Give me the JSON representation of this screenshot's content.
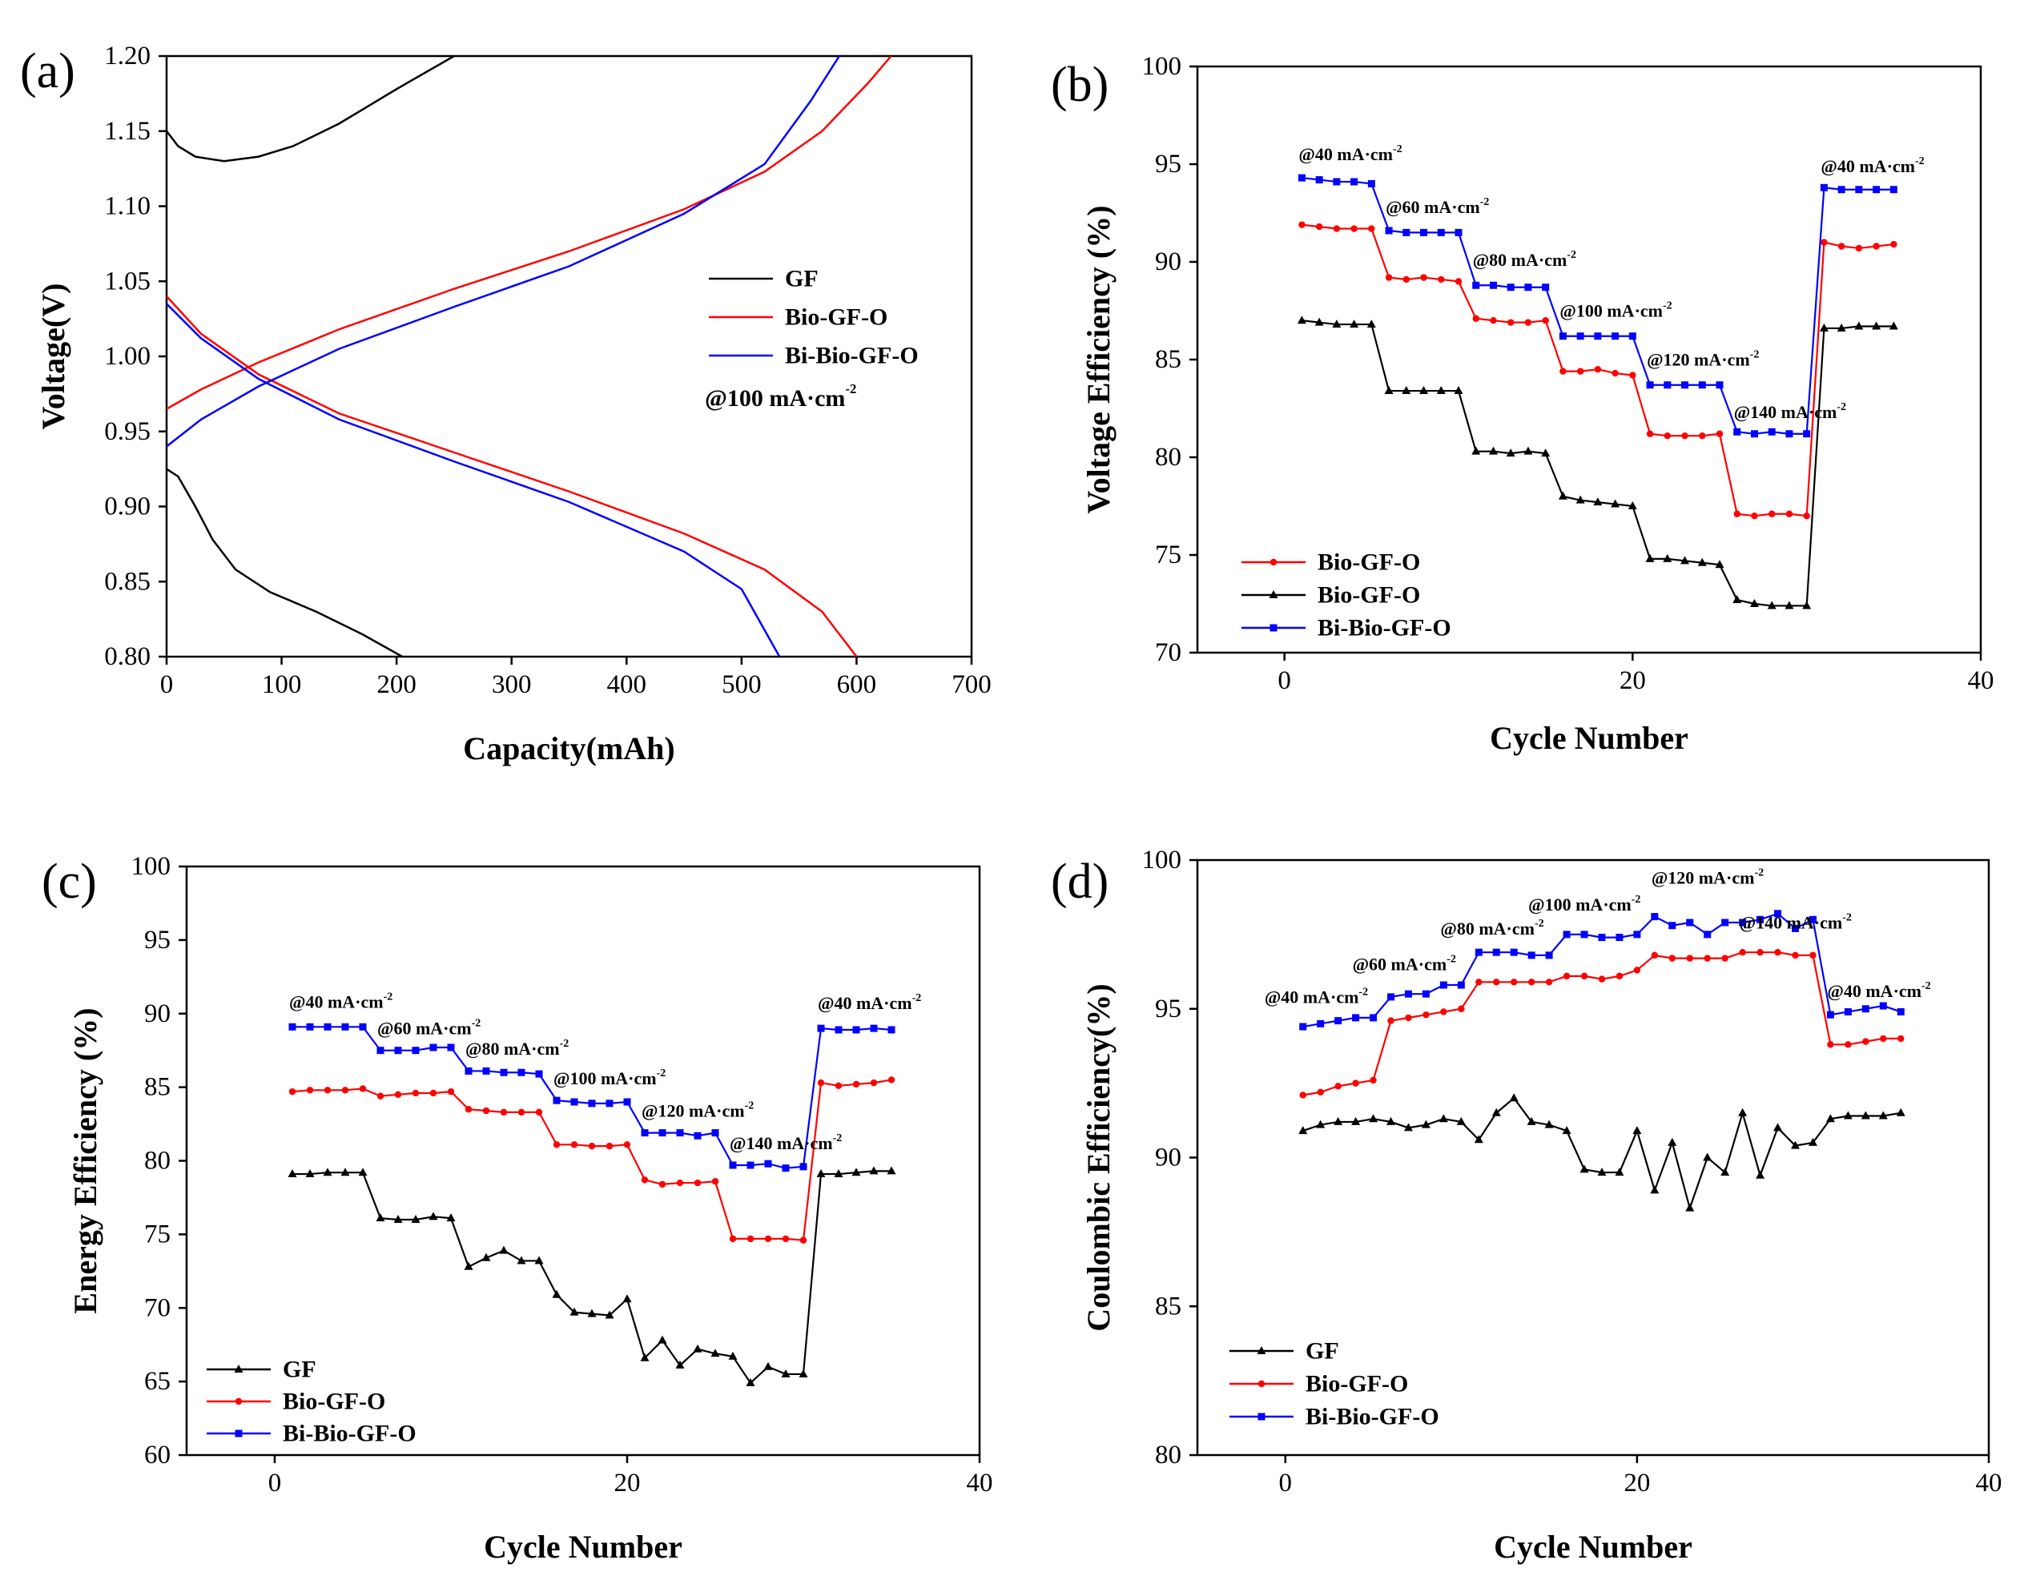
{
  "figure": "Multi-panel electrochemical performance figure",
  "chart_data": [
    {
      "panel": "(a)",
      "type": "line",
      "title": "",
      "xlabel": "Capacity(mAh)",
      "ylabel": "Voltage(V)",
      "xlim": [
        0,
        700
      ],
      "ylim": [
        0.8,
        1.2
      ],
      "xticks": [
        "0",
        "100",
        "200",
        "300",
        "400",
        "500",
        "600",
        "700"
      ],
      "yticks": [
        "0.80",
        "0.85",
        "0.90",
        "0.95",
        "1.00",
        "1.05",
        "1.10",
        "1.15",
        "1.20"
      ],
      "note": "@100 mA·cm",
      "note_sup": "-2",
      "series": [
        {
          "name": "GF",
          "color": "#000000",
          "marker": "none",
          "charge": {
            "x": [
              0,
              10,
              25,
              50,
              80,
              110,
              150,
              200,
              250
            ],
            "y": [
              1.15,
              1.14,
              1.133,
              1.13,
              1.133,
              1.14,
              1.155,
              1.178,
              1.2
            ]
          },
          "discharge": {
            "x": [
              0,
              10,
              25,
              40,
              60,
              90,
              130,
              170,
              205
            ],
            "y": [
              0.925,
              0.92,
              0.9,
              0.878,
              0.858,
              0.843,
              0.83,
              0.815,
              0.8
            ]
          }
        },
        {
          "name": "Bio-GF-O",
          "color": "#ff0000",
          "marker": "none",
          "charge": {
            "x": [
              0,
              30,
              80,
              150,
              250,
              350,
              450,
              520,
              570,
              610,
              630
            ],
            "y": [
              0.965,
              0.978,
              0.996,
              1.018,
              1.045,
              1.07,
              1.098,
              1.123,
              1.15,
              1.182,
              1.2
            ]
          },
          "discharge": {
            "x": [
              0,
              30,
              80,
              150,
              250,
              350,
              450,
              520,
              570,
              600
            ],
            "y": [
              1.04,
              1.015,
              0.988,
              0.962,
              0.936,
              0.91,
              0.882,
              0.858,
              0.83,
              0.8
            ]
          }
        },
        {
          "name": "Bi-Bio-GF-O",
          "color": "#0000ff",
          "marker": "none",
          "charge": {
            "x": [
              0,
              30,
              80,
              150,
              250,
              350,
              450,
              520,
              560,
              585
            ],
            "y": [
              0.94,
              0.958,
              0.98,
              1.005,
              1.033,
              1.06,
              1.095,
              1.128,
              1.17,
              1.2
            ]
          },
          "discharge": {
            "x": [
              0,
              30,
              80,
              150,
              250,
              350,
              450,
              500,
              533
            ],
            "y": [
              1.035,
              1.012,
              0.985,
              0.958,
              0.93,
              0.903,
              0.87,
              0.845,
              0.8
            ]
          }
        }
      ]
    },
    {
      "panel": "(b)",
      "type": "line",
      "title": "",
      "xlabel": "Cycle Number",
      "ylabel": "Voltage Efficiency (%)",
      "xlim": [
        -5,
        40
      ],
      "ylim": [
        70,
        100
      ],
      "xticks": [
        "0",
        "20",
        "40"
      ],
      "yticks": [
        "70",
        "75",
        "80",
        "85",
        "90",
        "95",
        "100"
      ],
      "x": [
        1,
        2,
        3,
        4,
        5,
        6,
        7,
        8,
        9,
        10,
        11,
        12,
        13,
        14,
        15,
        16,
        17,
        18,
        19,
        20,
        21,
        22,
        23,
        24,
        25,
        26,
        27,
        28,
        29,
        30,
        31,
        32,
        33,
        34,
        35
      ],
      "series": [
        {
          "name": "Bio-GF-O",
          "color": "#ff0000",
          "marker": "circle",
          "values": [
            91.9,
            91.8,
            91.7,
            91.7,
            91.7,
            89.2,
            89.1,
            89.2,
            89.1,
            89.0,
            87.1,
            87.0,
            86.9,
            86.9,
            87.0,
            84.4,
            84.4,
            84.5,
            84.3,
            84.2,
            81.2,
            81.1,
            81.1,
            81.1,
            81.2,
            77.1,
            77.0,
            77.1,
            77.1,
            77.0,
            91.0,
            90.8,
            90.7,
            90.8,
            90.9
          ]
        },
        {
          "name": "Bio-GF-O",
          "color": "#000000",
          "marker": "triangle",
          "values": [
            87.0,
            86.9,
            86.8,
            86.8,
            86.8,
            83.4,
            83.4,
            83.4,
            83.4,
            83.4,
            80.3,
            80.3,
            80.2,
            80.3,
            80.2,
            78.0,
            77.8,
            77.7,
            77.6,
            77.5,
            74.8,
            74.8,
            74.7,
            74.6,
            74.5,
            72.7,
            72.5,
            72.4,
            72.4,
            72.4,
            86.6,
            86.6,
            86.7,
            86.7,
            86.7
          ]
        },
        {
          "name": "Bi-Bio-GF-O",
          "color": "#0000ff",
          "marker": "square",
          "values": [
            94.3,
            94.2,
            94.1,
            94.1,
            94.0,
            91.6,
            91.5,
            91.5,
            91.5,
            91.5,
            88.8,
            88.8,
            88.7,
            88.7,
            88.7,
            86.2,
            86.2,
            86.2,
            86.2,
            86.2,
            83.7,
            83.7,
            83.7,
            83.7,
            83.7,
            81.3,
            81.2,
            81.3,
            81.2,
            81.2,
            93.8,
            93.7,
            93.7,
            93.7,
            93.7
          ]
        }
      ],
      "annotations": [
        {
          "text": "@40 mA·cm",
          "sup": "-2",
          "at_cycle": 1,
          "at_value": 95.2
        },
        {
          "text": "@60 mA·cm",
          "sup": "-2",
          "at_cycle": 6,
          "at_value": 92.5
        },
        {
          "text": "@80 mA·cm",
          "sup": "-2",
          "at_cycle": 11,
          "at_value": 89.8
        },
        {
          "text": "@100 mA·cm",
          "sup": "-2",
          "at_cycle": 16,
          "at_value": 87.2
        },
        {
          "text": "@120 mA·cm",
          "sup": "-2",
          "at_cycle": 21,
          "at_value": 84.7
        },
        {
          "text": "@140 mA·cm",
          "sup": "-2",
          "at_cycle": 26,
          "at_value": 82.0
        },
        {
          "text": "@40 mA·cm",
          "sup": "-2",
          "at_cycle": 31,
          "at_value": 94.6
        }
      ]
    },
    {
      "panel": "(c)",
      "type": "line",
      "title": "",
      "xlabel": "Cycle Number",
      "ylabel": "Energy Efficiency (%)",
      "xlim": [
        -5,
        40
      ],
      "ylim": [
        60,
        100
      ],
      "xticks": [
        "0",
        "20",
        "40"
      ],
      "yticks": [
        "60",
        "65",
        "70",
        "75",
        "80",
        "85",
        "90",
        "95",
        "100"
      ],
      "x": [
        1,
        2,
        3,
        4,
        5,
        6,
        7,
        8,
        9,
        10,
        11,
        12,
        13,
        14,
        15,
        16,
        17,
        18,
        19,
        20,
        21,
        22,
        23,
        24,
        25,
        26,
        27,
        28,
        29,
        30,
        31,
        32,
        33,
        34,
        35
      ],
      "series": [
        {
          "name": "GF",
          "color": "#000000",
          "marker": "triangle",
          "values": [
            79.1,
            79.1,
            79.2,
            79.2,
            79.2,
            76.1,
            76.0,
            76.0,
            76.2,
            76.1,
            72.8,
            73.4,
            73.9,
            73.2,
            73.2,
            70.9,
            69.7,
            69.6,
            69.5,
            70.6,
            66.6,
            67.8,
            66.1,
            67.2,
            66.9,
            66.7,
            64.9,
            66.0,
            65.5,
            65.5,
            79.1,
            79.1,
            79.2,
            79.3,
            79.3
          ]
        },
        {
          "name": "Bio-GF-O",
          "color": "#ff0000",
          "marker": "circle",
          "values": [
            84.7,
            84.8,
            84.8,
            84.8,
            84.9,
            84.4,
            84.5,
            84.6,
            84.6,
            84.7,
            83.5,
            83.4,
            83.3,
            83.3,
            83.3,
            81.1,
            81.1,
            81.0,
            81.0,
            81.1,
            78.7,
            78.4,
            78.5,
            78.5,
            78.6,
            74.7,
            74.7,
            74.7,
            74.7,
            74.6,
            85.3,
            85.1,
            85.2,
            85.3,
            85.5
          ]
        },
        {
          "name": "Bi-Bio-GF-O",
          "color": "#0000ff",
          "marker": "square",
          "values": [
            89.1,
            89.1,
            89.1,
            89.1,
            89.1,
            87.5,
            87.5,
            87.5,
            87.7,
            87.7,
            86.1,
            86.1,
            86.0,
            86.0,
            85.9,
            84.1,
            84.0,
            83.9,
            83.9,
            84.0,
            81.9,
            81.9,
            81.9,
            81.7,
            81.9,
            79.7,
            79.7,
            79.8,
            79.5,
            79.6,
            89.0,
            88.9,
            88.9,
            89.0,
            88.9
          ]
        }
      ],
      "annotations": [
        {
          "text": "@40 mA·cm",
          "sup": "-2",
          "at_cycle": 1,
          "at_value": 90.4
        },
        {
          "text": "@60 mA·cm",
          "sup": "-2",
          "at_cycle": 6,
          "at_value": 88.6
        },
        {
          "text": "@80 mA·cm",
          "sup": "-2",
          "at_cycle": 11,
          "at_value": 87.2
        },
        {
          "text": "@100 mA·cm",
          "sup": "-2",
          "at_cycle": 16,
          "at_value": 85.2
        },
        {
          "text": "@120 mA·cm",
          "sup": "-2",
          "at_cycle": 21,
          "at_value": 83.0
        },
        {
          "text": "@140 mA·cm",
          "sup": "-2",
          "at_cycle": 26,
          "at_value": 80.8
        },
        {
          "text": "@40 mA·cm",
          "sup": "-2",
          "at_cycle": 31,
          "at_value": 90.3
        }
      ]
    },
    {
      "panel": "(d)",
      "type": "line",
      "title": "",
      "xlabel": "Cycle Number",
      "ylabel": "Coulombic Efficiency(%)",
      "xlim": [
        -5,
        40
      ],
      "ylim": [
        80,
        100
      ],
      "xticks": [
        "0",
        "20",
        "40"
      ],
      "yticks": [
        "80",
        "85",
        "90",
        "95",
        "100"
      ],
      "x": [
        1,
        2,
        3,
        4,
        5,
        6,
        7,
        8,
        9,
        10,
        11,
        12,
        13,
        14,
        15,
        16,
        17,
        18,
        19,
        20,
        21,
        22,
        23,
        24,
        25,
        26,
        27,
        28,
        29,
        30,
        31,
        32,
        33,
        34,
        35
      ],
      "series": [
        {
          "name": "GF",
          "color": "#000000",
          "marker": "triangle",
          "values": [
            90.9,
            91.1,
            91.2,
            91.2,
            91.3,
            91.2,
            91.0,
            91.1,
            91.3,
            91.2,
            90.6,
            91.5,
            92.0,
            91.2,
            91.1,
            90.9,
            89.6,
            89.5,
            89.5,
            90.9,
            88.9,
            90.5,
            88.3,
            90.0,
            89.5,
            91.5,
            89.4,
            91.0,
            90.4,
            90.5,
            91.3,
            91.4,
            91.4,
            91.4,
            91.5
          ]
        },
        {
          "name": "Bio-GF-O",
          "color": "#ff0000",
          "marker": "circle",
          "values": [
            92.1,
            92.2,
            92.4,
            92.5,
            92.6,
            94.6,
            94.7,
            94.8,
            94.9,
            95.0,
            95.9,
            95.9,
            95.9,
            95.9,
            95.9,
            96.1,
            96.1,
            96.0,
            96.1,
            96.3,
            96.8,
            96.7,
            96.7,
            96.7,
            96.7,
            96.9,
            96.9,
            96.9,
            96.8,
            96.8,
            93.8,
            93.8,
            93.9,
            94.0,
            94.0
          ]
        },
        {
          "name": "Bi-Bio-GF-O",
          "color": "#0000ff",
          "marker": "square",
          "values": [
            94.4,
            94.5,
            94.6,
            94.7,
            94.7,
            95.4,
            95.5,
            95.5,
            95.8,
            95.8,
            96.9,
            96.9,
            96.9,
            96.8,
            96.8,
            97.5,
            97.5,
            97.4,
            97.4,
            97.5,
            98.1,
            97.8,
            97.9,
            97.5,
            97.9,
            97.9,
            98.0,
            98.2,
            97.7,
            98.0,
            94.8,
            94.9,
            95.0,
            95.1,
            94.9
          ]
        }
      ],
      "annotations": [
        {
          "text": "@40 mA·cm",
          "sup": "-2",
          "at_cycle": -1,
          "at_value": 95.2
        },
        {
          "text": "@60 mA·cm",
          "sup": "-2",
          "at_cycle": 4,
          "at_value": 96.3
        },
        {
          "text": "@80 mA·cm",
          "sup": "-2",
          "at_cycle": 9,
          "at_value": 97.5
        },
        {
          "text": "@100 mA·cm",
          "sup": "-2",
          "at_cycle": 14,
          "at_value": 98.3
        },
        {
          "text": "@120 mA·cm",
          "sup": "-2",
          "at_cycle": 21,
          "at_value": 99.2
        },
        {
          "text": "@140 mA·cm",
          "sup": "-2",
          "at_cycle": 26,
          "at_value": 97.7
        },
        {
          "text": "@40 mA·cm",
          "sup": "-2",
          "at_cycle": 31,
          "at_value": 95.4
        }
      ]
    }
  ]
}
